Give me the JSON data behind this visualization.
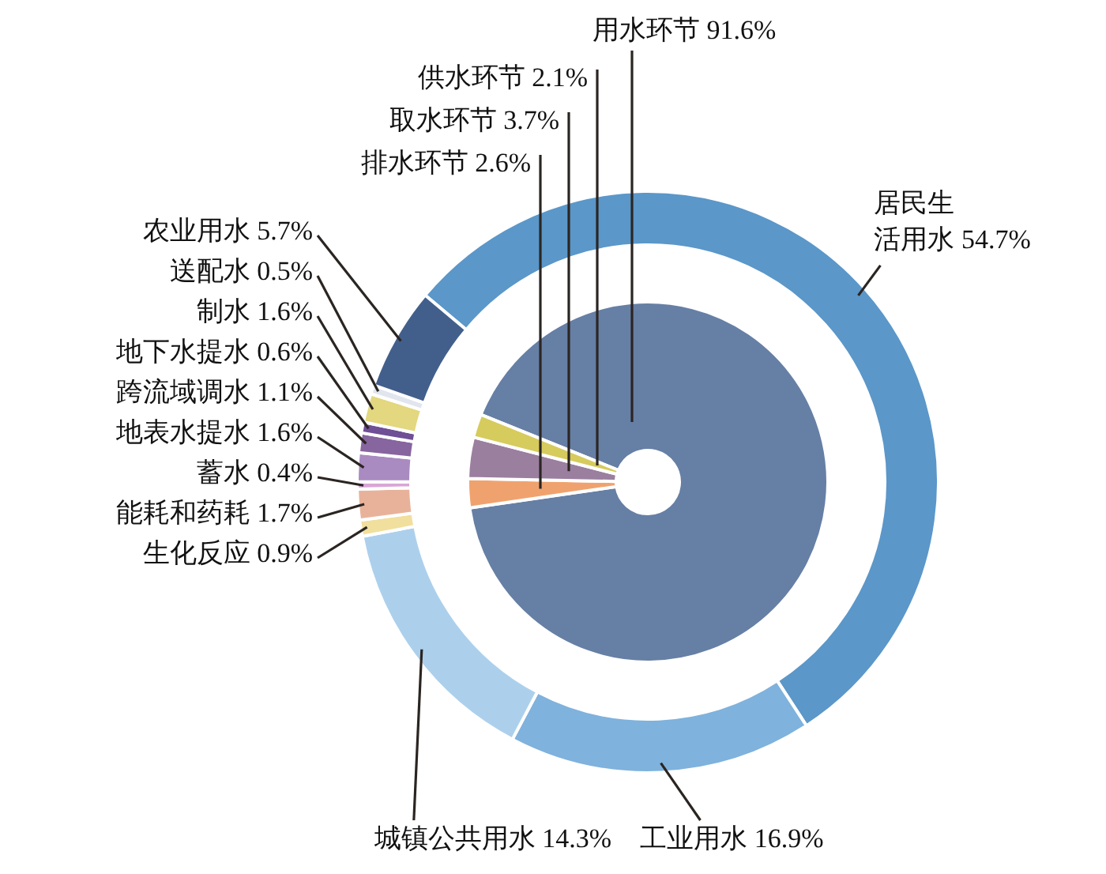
{
  "chart_data": [
    {
      "type": "donut",
      "categories": [
        "居民生活用水",
        "工业用水",
        "城镇公共用水",
        "生化反应",
        "能耗和药耗",
        "蓄水",
        "地表水提水",
        "跨流域调水",
        "地下水提水",
        "制水",
        "送配水",
        "农业用水"
      ],
      "values": [
        54.7,
        16.9,
        14.3,
        0.9,
        1.7,
        0.4,
        1.6,
        1.1,
        0.6,
        1.6,
        0.5,
        5.7
      ],
      "colors": [
        "#5b97c9",
        "#7fb2dc",
        "#acd0ec",
        "#f1df9e",
        "#e8b29a",
        "#d9a6d6",
        "#a98ac1",
        "#87659f",
        "#6f4f96",
        "#e3d77f",
        "#e1e6ee",
        "#425f8c"
      ],
      "value_labels": [
        "54.7%",
        "16.9%",
        "14.3%",
        "0.9%",
        "1.7%",
        "0.4%",
        "1.6%",
        "1.1%",
        "0.6%",
        "1.6%",
        "0.5%",
        "5.7%"
      ]
    },
    {
      "type": "donut",
      "categories": [
        "用水环节",
        "排水环节",
        "取水环节",
        "供水环节"
      ],
      "values": [
        91.6,
        2.6,
        3.7,
        2.1
      ],
      "colors": [
        "#667fa5",
        "#f0a26e",
        "#9b7f9f",
        "#d6cb5d"
      ],
      "value_labels": [
        "91.6%",
        "2.6%",
        "3.7%",
        "2.1%"
      ]
    }
  ]
}
